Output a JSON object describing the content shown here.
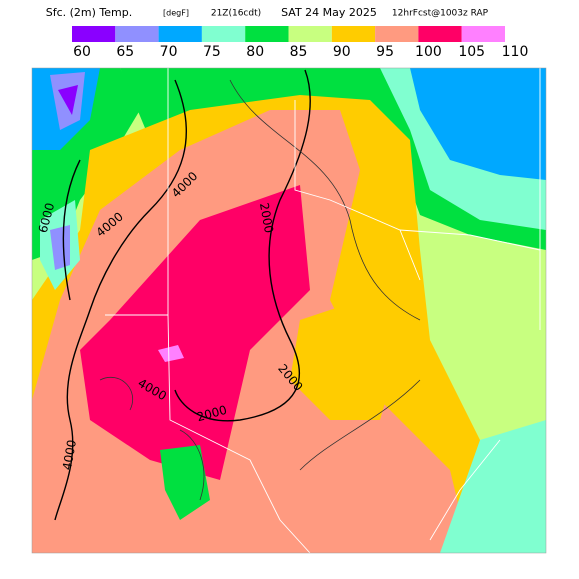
{
  "header": {
    "title": "Sfc. (2m) Temp.",
    "units": "[degF]",
    "valid": "21Z(16cdt)",
    "date": "SAT 24 May 2025",
    "model": "12hrFcst@1003z RAP"
  },
  "legend": {
    "ticks": [
      60,
      65,
      70,
      75,
      80,
      85,
      90,
      95,
      100,
      105,
      110
    ],
    "colors": [
      "#8a00ff",
      "#9090ff",
      "#00a8ff",
      "#80ffd0",
      "#00e040",
      "#c8ff80",
      "#ffcc00",
      "#ff9a80",
      "#ff0066",
      "#ff80ff"
    ]
  },
  "map": {
    "contour_labels": [
      "4000",
      "6000",
      "4000",
      "2000",
      "2000",
      "4000",
      "2000",
      "4000"
    ]
  }
}
